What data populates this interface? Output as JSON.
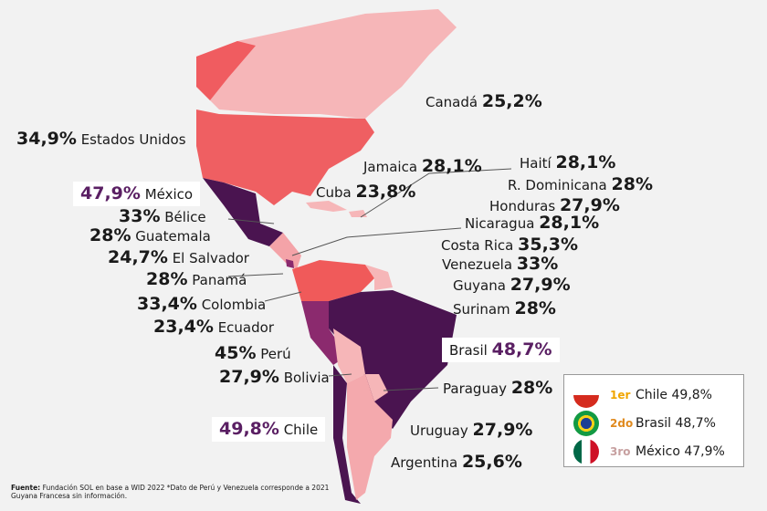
{
  "countries": [
    {
      "name": "Canadá",
      "value": "25,2%"
    },
    {
      "name": "Estados Unidos",
      "value": "34,9%"
    },
    {
      "name": "Jamaica",
      "value": "28,1%"
    },
    {
      "name": "Haití",
      "value": "28,1%"
    },
    {
      "name": "México",
      "value": "47,9%"
    },
    {
      "name": "Cuba",
      "value": "23,8%"
    },
    {
      "name": "R. Dominicana",
      "value": "28%"
    },
    {
      "name": "Honduras",
      "value": "27,9%"
    },
    {
      "name": "Bélice",
      "value": "33%"
    },
    {
      "name": "Nicaragua",
      "value": "28,1%"
    },
    {
      "name": "Guatemala",
      "value": "28%"
    },
    {
      "name": "Costa Rica",
      "value": "35,3%"
    },
    {
      "name": "El Salvador",
      "value": "24,7%"
    },
    {
      "name": "Venezuela",
      "value": "33%"
    },
    {
      "name": "Panamá",
      "value": "28%"
    },
    {
      "name": "Guyana",
      "value": "27,9%"
    },
    {
      "name": "Colombia",
      "value": "33,4%"
    },
    {
      "name": "Surinam",
      "value": "28%"
    },
    {
      "name": "Ecuador",
      "value": "23,4%"
    },
    {
      "name": "Perú",
      "value": "45%"
    },
    {
      "name": "Brasil",
      "value": "48,7%"
    },
    {
      "name": "Bolivia",
      "value": "27,9%"
    },
    {
      "name": "Paraguay",
      "value": "28%"
    },
    {
      "name": "Chile",
      "value": "49,8%"
    },
    {
      "name": "Uruguay",
      "value": "27,9%"
    },
    {
      "name": "Argentina",
      "value": "25,6%"
    }
  ],
  "ranking": [
    {
      "place": "1er",
      "name": "Chile",
      "value": "49,8%"
    },
    {
      "place": "2do",
      "name": "Brasil",
      "value": "48,7%"
    },
    {
      "place": "3ro",
      "name": "México",
      "value": "47,9%"
    }
  ],
  "source": {
    "label": "Fuente:",
    "line1": "Fundación SOL en base a WID 2022 *Dato de Perú y Venezuela corresponde a 2021",
    "line2": "Guyana Francesa sin información."
  }
}
